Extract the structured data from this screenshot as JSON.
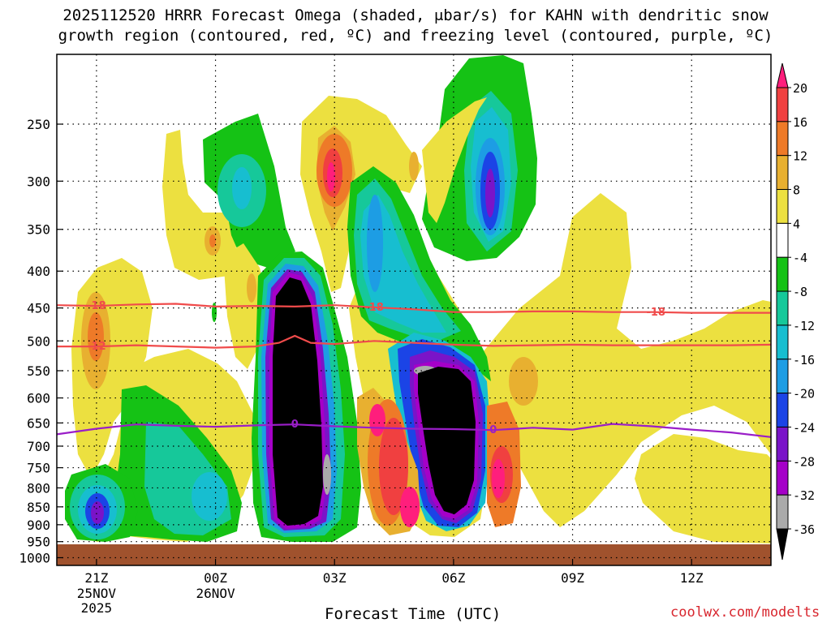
{
  "title_line1": "2025112520 HRRR Forecast Omega (shaded, μbar/s) for KAHN with dendritic snow",
  "title_line2": "growth region (contoured, red, ºC) and freezing level (contoured, purple, ºC)",
  "credit": "coolwx.com/modelts",
  "colors": {
    "ground": "#a0522d",
    "dgz": "#f04b4b",
    "freezing": "#9a1ec8",
    "frame": "#000000"
  },
  "chart_data": {
    "type": "heatmap",
    "title": "2025112520 HRRR Forecast Omega (shaded, μbar/s) for KAHN with dendritic snow growth region (contoured, red, ºC) and freezing level (contoured, purple, ºC)",
    "xlabel": "Forecast Time (UTC)",
    "ylabel": "",
    "x_unit": "hours since 2025-11-25 20Z",
    "xlim": [
      0,
      18
    ],
    "y_unit": "hPa",
    "y_scale": "log-pressure (inverted)",
    "ylim": [
      1025,
      200
    ],
    "y_ticks": [
      250,
      300,
      350,
      400,
      450,
      500,
      550,
      600,
      650,
      700,
      750,
      800,
      850,
      900,
      950,
      1000
    ],
    "x_ticks": [
      {
        "x": 1,
        "label": "21Z",
        "sub": [
          "25NOV",
          "2025"
        ]
      },
      {
        "x": 4,
        "label": "00Z",
        "sub": [
          "26NOV"
        ]
      },
      {
        "x": 7,
        "label": "03Z",
        "sub": []
      },
      {
        "x": 10,
        "label": "06Z",
        "sub": []
      },
      {
        "x": 13,
        "label": "09Z",
        "sub": []
      },
      {
        "x": 16,
        "label": "12Z",
        "sub": []
      }
    ],
    "grid": true,
    "colorbar": {
      "unit": "μbar/s",
      "levels": [
        "20",
        "16",
        "12",
        "8",
        "4",
        "-4",
        "-8",
        "-12",
        "-16",
        "-20",
        "-24",
        "-28",
        "-32",
        "-36"
      ],
      "colors": [
        "#ff1e7c",
        "#f04040",
        "#ee7a28",
        "#e8b030",
        "#ece040",
        "#ffffff",
        "#15c215",
        "#16c89a",
        "#17bed0",
        "#1d9de4",
        "#1b44e6",
        "#7a14c8",
        "#a500c8",
        "#aaaaaa",
        "#000000"
      ]
    },
    "omega_features": [
      {
        "x": 2.9,
        "p": 300,
        "value": 4
      },
      {
        "x": 3.9,
        "p": 390,
        "value": 8
      },
      {
        "x": 4.8,
        "p": 320,
        "value": -12
      },
      {
        "x": 7.0,
        "p": 300,
        "value": 20
      },
      {
        "x": 8.1,
        "p": 370,
        "value": -20
      },
      {
        "x": 10.9,
        "p": 320,
        "value": -28
      },
      {
        "x": 6.0,
        "p": 640,
        "value": -36
      },
      {
        "x": 9.9,
        "p": 700,
        "value": -36
      },
      {
        "x": 8.8,
        "p": 750,
        "value": 16
      },
      {
        "x": 11.2,
        "p": 780,
        "value": 20
      },
      {
        "x": 0.9,
        "p": 890,
        "value": -28
      },
      {
        "x": 1.0,
        "p": 530,
        "value": 8
      },
      {
        "x": 3.8,
        "p": 860,
        "value": -16
      },
      {
        "x": 15.7,
        "p": 800,
        "value": 4
      }
    ],
    "series": [
      {
        "name": "-18",
        "color": "#f04b4b",
        "x": [
          0,
          1,
          2,
          3,
          4,
          5,
          6,
          7,
          8,
          9,
          10,
          11,
          12,
          13,
          14,
          15,
          16,
          17,
          18
        ],
        "y": [
          446,
          447,
          445,
          444,
          448,
          447,
          448,
          446,
          449,
          452,
          456,
          456,
          455,
          455,
          456,
          456,
          457,
          457,
          457
        ],
        "labels": [
          {
            "x": 1.0,
            "text": "-18"
          },
          {
            "x": 8.0,
            "text": "-18"
          },
          {
            "x": 15.1,
            "text": "-18"
          }
        ]
      },
      {
        "name": "-12",
        "color": "#f04b4b",
        "x": [
          0,
          1,
          2,
          3,
          4,
          5,
          5.6,
          6.0,
          6.4,
          7.0,
          8,
          9,
          10,
          11,
          12,
          13,
          14,
          15,
          16,
          17,
          18
        ],
        "y": [
          509,
          509,
          507,
          509,
          511,
          509,
          503,
          492,
          503,
          505,
          500,
          503,
          506,
          508,
          507,
          506,
          507,
          507,
          507,
          507,
          506
        ],
        "labels": [
          {
            "x": 1.0,
            "text": "-12"
          }
        ]
      },
      {
        "name": "0",
        "color": "#9a1ec8",
        "x": [
          0,
          1,
          2,
          3,
          4,
          5,
          6,
          7,
          8,
          9,
          10,
          11,
          12,
          13,
          14,
          15,
          16,
          17,
          18
        ],
        "y": [
          674,
          662,
          653,
          656,
          658,
          655,
          653,
          657,
          660,
          662,
          663,
          665,
          660,
          664,
          652,
          657,
          664,
          670,
          680
        ],
        "labels": [
          {
            "x": 6.0,
            "text": "0"
          },
          {
            "x": 11.0,
            "text": "0"
          }
        ]
      }
    ]
  }
}
